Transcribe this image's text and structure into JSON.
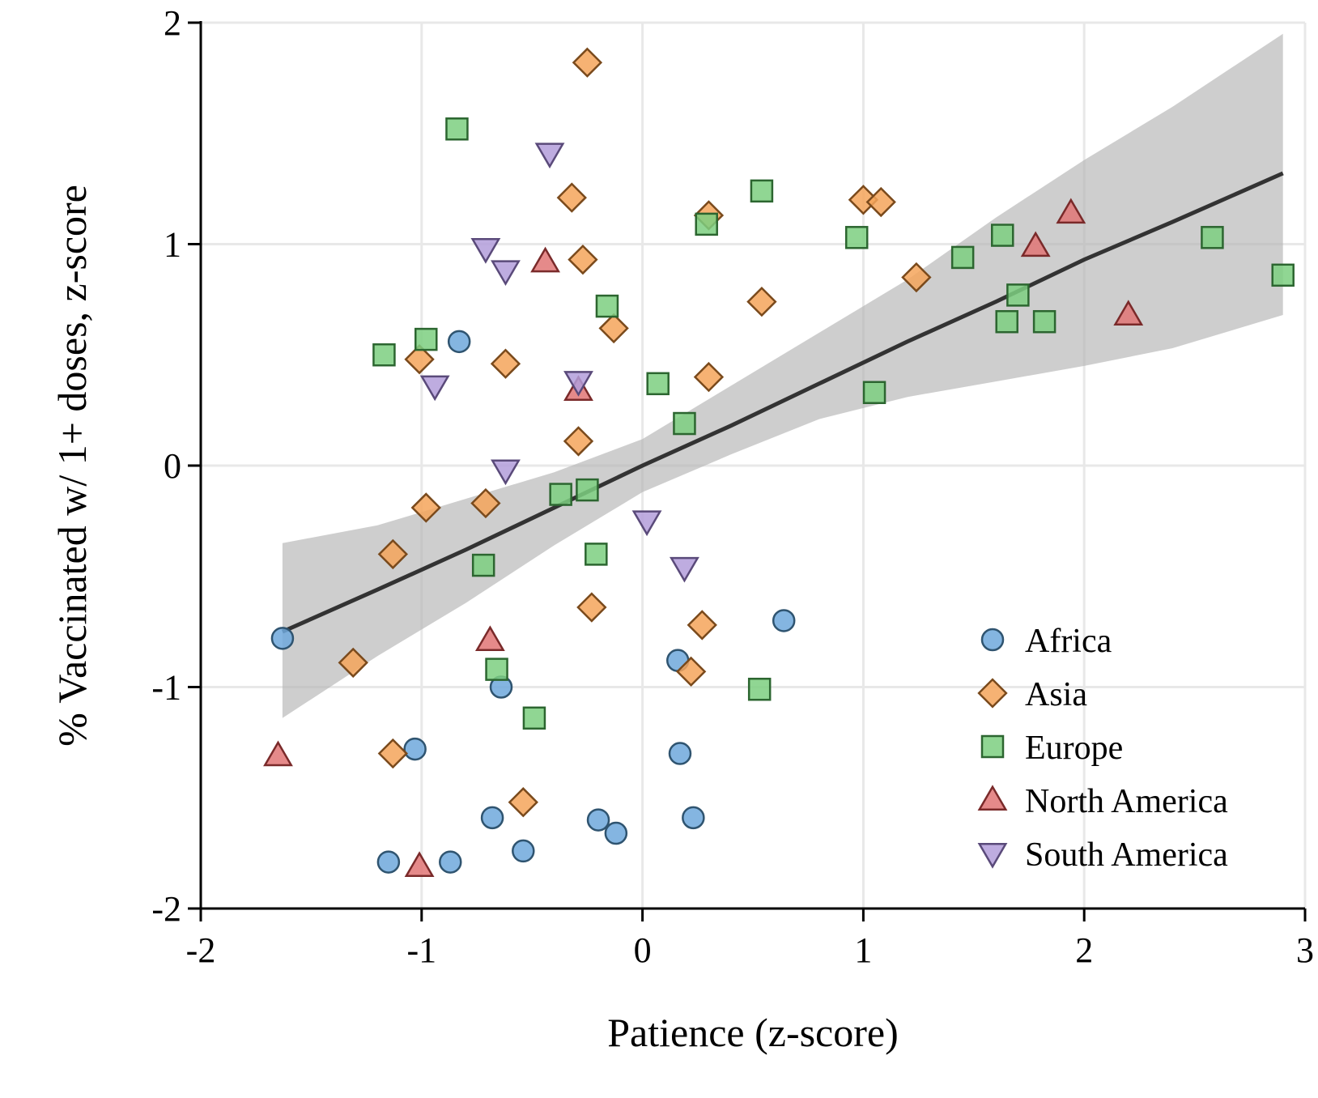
{
  "chart_data": {
    "type": "scatter",
    "xlabel": "Patience (z-score)",
    "ylabel": "% Vaccinated w/ 1+ doses, z-score",
    "xlim": [
      -2,
      3
    ],
    "ylim": [
      -2,
      2
    ],
    "xticks": [
      -2,
      -1,
      0,
      1,
      2,
      3
    ],
    "yticks": [
      -2,
      -1,
      0,
      1,
      2
    ],
    "xtick_labels": [
      "-2",
      "-1",
      "0",
      "1",
      "2",
      "3"
    ],
    "ytick_labels": [
      "-2",
      "-1",
      "0",
      "1",
      "2"
    ],
    "grid": true,
    "legend_position": "bottom-right",
    "fit": {
      "x": [
        -1.63,
        -1.2,
        -0.8,
        -0.4,
        0.0,
        0.4,
        0.8,
        1.2,
        1.6,
        2.0,
        2.4,
        2.9
      ],
      "y": [
        -0.75,
        -0.56,
        -0.38,
        -0.19,
        0.0,
        0.18,
        0.37,
        0.56,
        0.74,
        0.93,
        1.1,
        1.32
      ],
      "lower": [
        -1.14,
        -0.86,
        -0.62,
        -0.36,
        -0.12,
        0.05,
        0.21,
        0.31,
        0.38,
        0.45,
        0.53,
        0.68
      ],
      "upper": [
        -0.35,
        -0.27,
        -0.15,
        -0.03,
        0.12,
        0.36,
        0.6,
        0.84,
        1.12,
        1.38,
        1.62,
        1.95
      ],
      "line_color": "#333333",
      "band_color": "#b3b3b3"
    },
    "series": [
      {
        "name": "Africa",
        "marker": "circle",
        "color": "#6fa8dc",
        "stroke": "#2f5470",
        "points": [
          [
            -1.63,
            -0.78
          ],
          [
            -0.83,
            0.56
          ],
          [
            -1.03,
            -1.28
          ],
          [
            -0.64,
            -1.0
          ],
          [
            -0.68,
            -1.59
          ],
          [
            -0.54,
            -1.74
          ],
          [
            -0.87,
            -1.79
          ],
          [
            -1.15,
            -1.79
          ],
          [
            -0.2,
            -1.6
          ],
          [
            -0.12,
            -1.66
          ],
          [
            0.16,
            -0.88
          ],
          [
            0.17,
            -1.3
          ],
          [
            0.23,
            -1.59
          ],
          [
            0.64,
            -0.7
          ]
        ]
      },
      {
        "name": "Asia",
        "marker": "diamond",
        "color": "#f5a55a",
        "stroke": "#7a4a1c",
        "points": [
          [
            -0.25,
            1.82
          ],
          [
            -0.32,
            1.21
          ],
          [
            -0.27,
            0.93
          ],
          [
            -0.13,
            0.62
          ],
          [
            -0.62,
            0.46
          ],
          [
            -1.01,
            0.48
          ],
          [
            -0.29,
            0.11
          ],
          [
            -0.71,
            -0.17
          ],
          [
            -0.98,
            -0.19
          ],
          [
            -1.13,
            -0.4
          ],
          [
            -1.31,
            -0.89
          ],
          [
            -1.13,
            -1.3
          ],
          [
            -0.54,
            -1.52
          ],
          [
            -0.23,
            -0.64
          ],
          [
            0.22,
            -0.93
          ],
          [
            0.27,
            -0.72
          ],
          [
            0.3,
            0.4
          ],
          [
            0.3,
            1.13
          ],
          [
            0.54,
            0.74
          ],
          [
            1.0,
            1.2
          ],
          [
            1.08,
            1.19
          ],
          [
            1.24,
            0.85
          ]
        ]
      },
      {
        "name": "Europe",
        "marker": "square",
        "color": "#7ccf80",
        "stroke": "#2c6630",
        "points": [
          [
            -0.84,
            1.52
          ],
          [
            -0.98,
            0.57
          ],
          [
            -1.17,
            0.5
          ],
          [
            -0.16,
            0.72
          ],
          [
            0.07,
            0.37
          ],
          [
            0.19,
            0.19
          ],
          [
            -0.37,
            -0.13
          ],
          [
            -0.25,
            -0.11
          ],
          [
            -0.21,
            -0.4
          ],
          [
            -0.72,
            -0.45
          ],
          [
            -0.66,
            -0.92
          ],
          [
            -0.49,
            -1.14
          ],
          [
            0.53,
            -1.01
          ],
          [
            0.29,
            1.09
          ],
          [
            0.54,
            1.24
          ],
          [
            0.97,
            1.03
          ],
          [
            1.05,
            0.33
          ],
          [
            1.45,
            0.94
          ],
          [
            1.63,
            1.04
          ],
          [
            1.65,
            0.65
          ],
          [
            1.7,
            0.77
          ],
          [
            1.82,
            0.65
          ],
          [
            2.58,
            1.03
          ],
          [
            2.9,
            0.86
          ]
        ]
      },
      {
        "name": "North America",
        "marker": "triangle-up",
        "color": "#e07575",
        "stroke": "#7a2a2a",
        "points": [
          [
            -1.65,
            -1.31
          ],
          [
            -1.01,
            -1.81
          ],
          [
            -0.69,
            -0.79
          ],
          [
            -0.44,
            0.92
          ],
          [
            -0.29,
            0.34
          ],
          [
            1.78,
            0.99
          ],
          [
            1.94,
            1.14
          ],
          [
            2.2,
            0.68
          ]
        ]
      },
      {
        "name": "South America",
        "marker": "triangle-down",
        "color": "#b39ddb",
        "stroke": "#5a4a7a",
        "points": [
          [
            -0.42,
            1.41
          ],
          [
            -0.71,
            0.98
          ],
          [
            -0.62,
            0.88
          ],
          [
            -0.94,
            0.36
          ],
          [
            -0.29,
            0.38
          ],
          [
            -0.62,
            -0.02
          ],
          [
            0.02,
            -0.25
          ],
          [
            0.19,
            -0.46
          ]
        ]
      }
    ]
  }
}
